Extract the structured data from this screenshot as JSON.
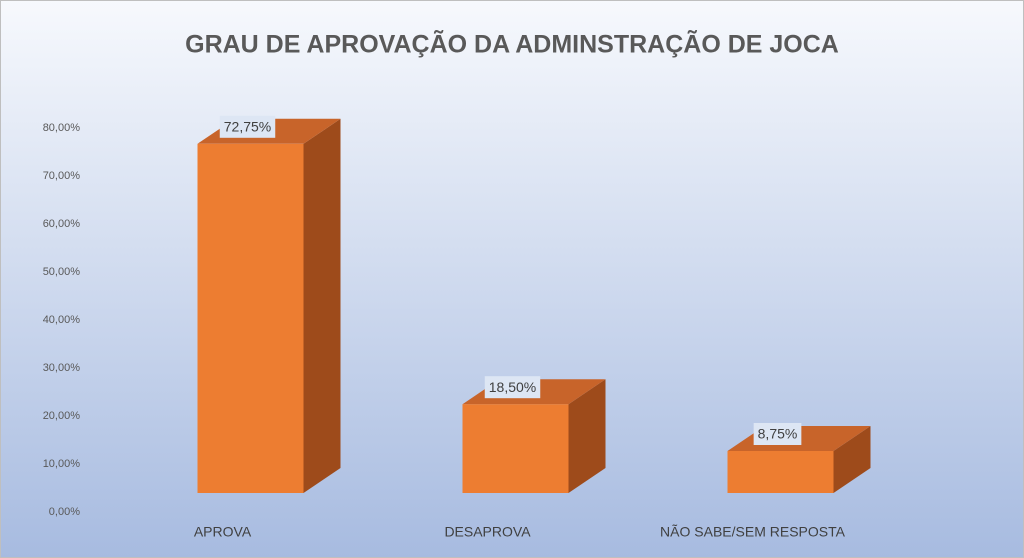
{
  "chart_data": {
    "type": "bar3d",
    "title": "GRAU DE APROVAÇÃO DA ADMINSTRAÇÃO DE JOCA",
    "categories": [
      "APROVA",
      "DESAPROVA",
      "NÃO SABE/SEM RESPOSTA"
    ],
    "values": [
      72.75,
      18.5,
      8.75
    ],
    "value_labels": [
      "72,75%",
      "18,50%",
      "8,75%"
    ],
    "color": "#ed7d31",
    "ylim": [
      0,
      80
    ],
    "yticks": [
      {
        "value": 0,
        "label": "0,00%"
      },
      {
        "value": 10,
        "label": "10,00%"
      },
      {
        "value": 20,
        "label": "20,00%"
      },
      {
        "value": 30,
        "label": "30,00%"
      },
      {
        "value": 40,
        "label": "40,00%"
      },
      {
        "value": 50,
        "label": "50,00%"
      },
      {
        "value": 60,
        "label": "60,00%"
      },
      {
        "value": 70,
        "label": "70,00%"
      },
      {
        "value": 80,
        "label": "80,00%"
      }
    ],
    "grid": false
  }
}
